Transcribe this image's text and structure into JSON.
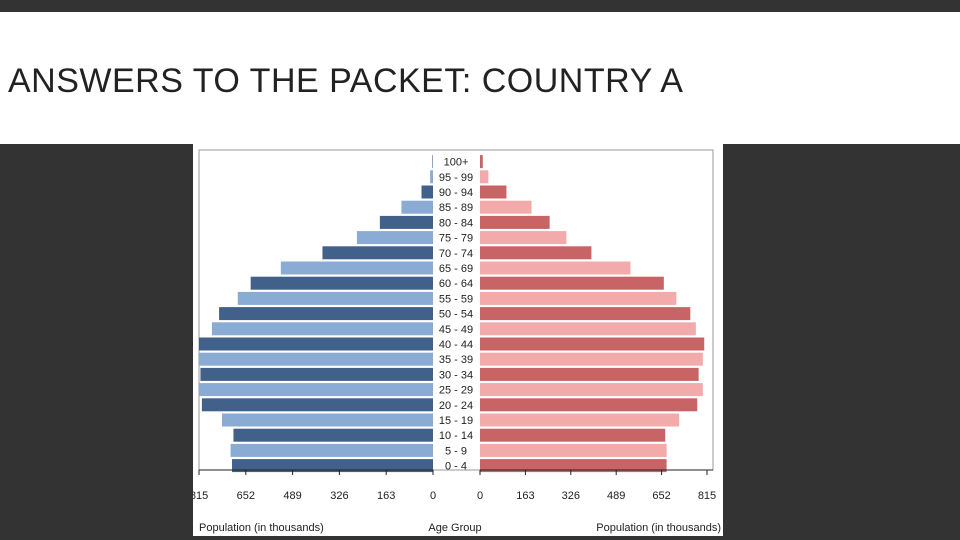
{
  "slide": {
    "title": "ANSWERS TO THE PACKET: COUNTRY A"
  },
  "chart_data": {
    "type": "bar",
    "orientation": "horizontal",
    "categories": [
      "0 - 4",
      "5 - 9",
      "10 - 14",
      "15 - 19",
      "20 - 24",
      "25 - 29",
      "30 - 34",
      "35 - 39",
      "40 - 44",
      "45 - 49",
      "50 - 54",
      "55 - 59",
      "60 - 64",
      "65 - 69",
      "70 - 74",
      "75 - 79",
      "80 - 84",
      "85 - 89",
      "90 - 94",
      "95 - 99",
      "100+"
    ],
    "series": [
      {
        "side": "left",
        "values": [
          700,
          705,
          695,
          735,
          805,
          815,
          810,
          815,
          815,
          770,
          745,
          680,
          635,
          530,
          385,
          265,
          185,
          110,
          40,
          10,
          2
        ]
      },
      {
        "side": "right",
        "values": [
          670,
          670,
          665,
          715,
          780,
          800,
          785,
          800,
          805,
          775,
          755,
          705,
          660,
          540,
          400,
          310,
          250,
          185,
          95,
          30,
          10
        ]
      }
    ],
    "colors": {
      "left_dark": "#41608a",
      "left_light": "#8aabd3",
      "right_dark": "#c96466",
      "right_light": "#f2aaaa"
    },
    "xlim": [
      0,
      815
    ],
    "xticks_left": [
      "815",
      "652",
      "489",
      "326",
      "163",
      "0"
    ],
    "xticks_right": [
      "0",
      "163",
      "326",
      "489",
      "652",
      "815"
    ],
    "xlabel_left": "Population (in thousands)",
    "center_label": "Age Group",
    "xlabel_right": "Population (in thousands)",
    "grid": false,
    "legend": "none"
  }
}
